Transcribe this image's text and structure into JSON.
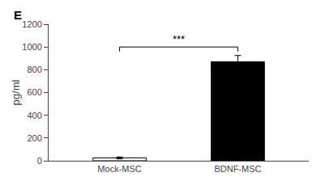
{
  "chart_data": {
    "type": "bar",
    "categories": [
      "Mock-MSC",
      "BDNF-MSC"
    ],
    "values": [
      25,
      870
    ],
    "errors": [
      8,
      55
    ],
    "colors": [
      "white",
      "black"
    ],
    "ylabel": "pg/ml",
    "ylim": [
      0,
      1200
    ],
    "yticks": [
      0,
      200,
      400,
      600,
      800,
      1000,
      1200
    ],
    "grid": false,
    "annotations": [
      {
        "text": "***",
        "from": "Mock-MSC",
        "to": "BDNF-MSC",
        "y": 1000
      },
      {
        "text": "E"
      }
    ]
  }
}
